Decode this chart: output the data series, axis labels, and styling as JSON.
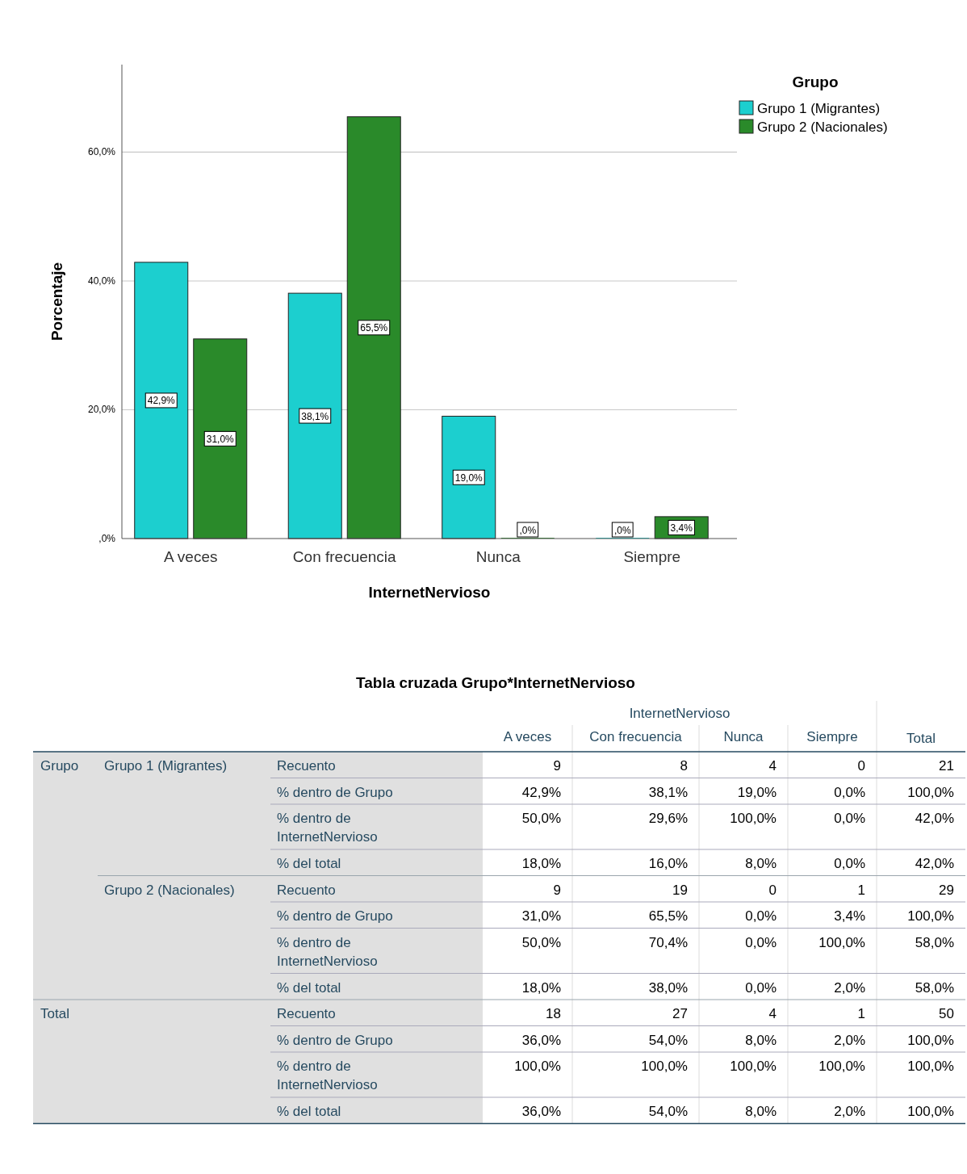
{
  "chart_data": [
    {
      "type": "bar",
      "xlabel": "InternetNervioso",
      "ylabel": "Porcentaje",
      "legend_title": "Grupo",
      "legend": "top right",
      "grid": "y",
      "categories": [
        "A veces",
        "Con frecuencia",
        "Nunca",
        "Siempre"
      ],
      "series": [
        {
          "name": "Grupo 1 (Migrantes)",
          "color": "#1ccfcf",
          "values": [
            42.9,
            38.1,
            19.0,
            0.0
          ],
          "value_labels": [
            "42,9%",
            "38,1%",
            "19,0%",
            ",0%"
          ]
        },
        {
          "name": "Grupo 2 (Nacionales)",
          "color": "#2a8a2a",
          "values": [
            31.0,
            65.5,
            0.0,
            3.4
          ],
          "value_labels": [
            "31,0%",
            "65,5%",
            ",0%",
            "3,4%"
          ]
        }
      ],
      "ylim": [
        0,
        73.6
      ],
      "yticks": [
        {
          "value": 0,
          "label": ",0%"
        },
        {
          "value": 20,
          "label": "20,0%"
        },
        {
          "value": 40,
          "label": "40,0%"
        },
        {
          "value": 60,
          "label": "60,0%"
        }
      ]
    },
    {
      "type": "other",
      "title": "Tabla cruzada Grupo*InternetNervioso",
      "xlabel": "InternetNervioso",
      "ylabel": "Grupo",
      "categories": [
        "A veces",
        "Con frecuencia",
        "Nunca",
        "Siempre",
        "Total"
      ],
      "annotations": [
        "Grupo 1 (Migrantes)",
        "Grupo 2 (Nacionales)",
        "Total"
      ],
      "y_categories": [
        "Recuento",
        "% dentro de Grupo",
        "% dentro de InternetNervioso",
        "% del total",
        "Recuento",
        "% dentro de Grupo",
        "% dentro de InternetNervioso",
        "% del total",
        "Recuento",
        "% dentro de Grupo",
        "% dentro de InternetNervioso",
        "% del total"
      ],
      "cell_labels": [
        [
          "9",
          "8",
          "4",
          "0",
          "21"
        ],
        [
          "42,9%",
          "38,1%",
          "19,0%",
          "0,0%",
          "100,0%"
        ],
        [
          "50,0%",
          "29,6%",
          "100,0%",
          "0,0%",
          "42,0%"
        ],
        [
          "18,0%",
          "16,0%",
          "8,0%",
          "0,0%",
          "42,0%"
        ],
        [
          "9",
          "19",
          "0",
          "1",
          "29"
        ],
        [
          "31,0%",
          "65,5%",
          "0,0%",
          "3,4%",
          "100,0%"
        ],
        [
          "50,0%",
          "70,4%",
          "0,0%",
          "100,0%",
          "58,0%"
        ],
        [
          "18,0%",
          "38,0%",
          "0,0%",
          "2,0%",
          "58,0%"
        ],
        [
          "18",
          "27",
          "4",
          "1",
          "50"
        ],
        [
          "36,0%",
          "54,0%",
          "8,0%",
          "2,0%",
          "100,0%"
        ],
        [
          "100,0%",
          "100,0%",
          "100,0%",
          "100,0%",
          "100,0%"
        ],
        [
          "36,0%",
          "54,0%",
          "8,0%",
          "2,0%",
          "100,0%"
        ]
      ]
    }
  ]
}
